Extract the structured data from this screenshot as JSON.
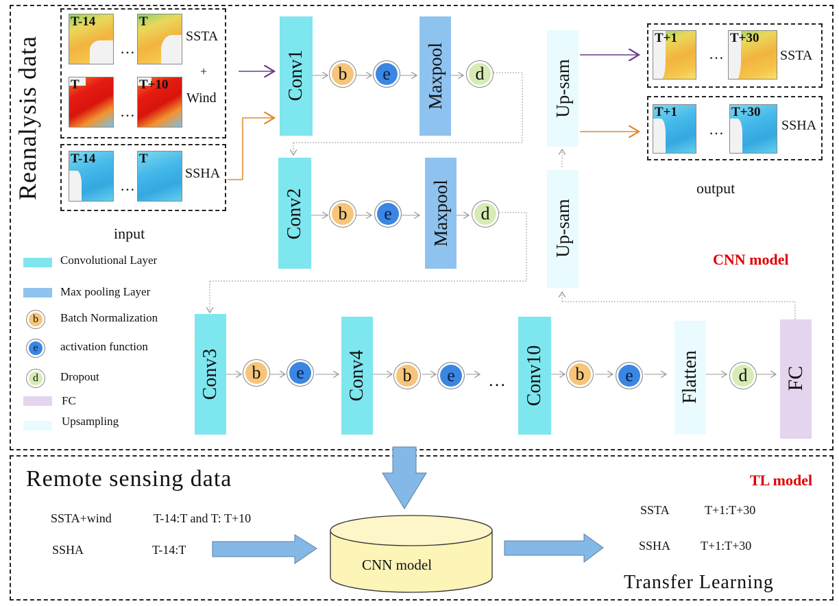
{
  "colors": {
    "conv": "#7ee6ef",
    "pool": "#8ec3ef",
    "upsample": "#e9fbfe",
    "fc": "#e4d4ee",
    "batch_norm": "#f6c57a",
    "activation": "#3a86e2",
    "dropout": "#d6ecb4",
    "model_label": "#e00000",
    "arrow_purple": "#6a3c8c",
    "arrow_orange": "#e08a2a",
    "big_arrow": "#84b8e6"
  },
  "left_title": "Reanalysis data",
  "input": {
    "caption": "input",
    "sst_row1": {
      "first": "T-14",
      "last": "T",
      "var": "SSTA"
    },
    "plus": "+",
    "sst_row2": {
      "first": "T",
      "last": "T+10",
      "var": "Wind"
    },
    "ssh_row": {
      "first": "T-14",
      "last": "T",
      "var": "SSHA"
    },
    "ellipsis": "…"
  },
  "output": {
    "caption": "output",
    "sst_row": {
      "first": "T+1",
      "last": "T+30",
      "var": "SSTA"
    },
    "ssh_row": {
      "first": "T+1",
      "last": "T+30",
      "var": "SSHA"
    },
    "ellipsis": "…"
  },
  "layers": {
    "conv1": "Conv1",
    "conv2": "Conv2",
    "conv3": "Conv3",
    "conv4": "Conv4",
    "conv10": "Conv10",
    "maxpool": "Maxpool",
    "upsam": "Up-sam",
    "flatten": "Flatten",
    "fc": "FC"
  },
  "nodes": {
    "b": "b",
    "e": "e",
    "d": "d"
  },
  "row3_ellipsis": "…",
  "legend": [
    {
      "label": "Convolutional Layer",
      "kind": "swatch-conv"
    },
    {
      "label": "Max pooling Layer",
      "kind": "swatch-pool"
    },
    {
      "label": "Batch Normalization",
      "kind": "node-b",
      "glyph": "b"
    },
    {
      "label": "activation function",
      "kind": "node-e",
      "glyph": "e"
    },
    {
      "label": "Dropout",
      "kind": "node-d",
      "glyph": "d"
    },
    {
      "label": "FC",
      "kind": "swatch-fc"
    },
    {
      "label": "Upsampling",
      "kind": "swatch-ups"
    }
  ],
  "cnn_model_label": "CNN model",
  "tl_model_label": "TL model",
  "remote": {
    "title": "Remote sensing data",
    "row1": {
      "var": "SSTA+wind",
      "range": "T-14:T and T: T+10"
    },
    "row2": {
      "var": "SSHA",
      "range": "T-14:T"
    },
    "cylinder": "CNN model",
    "out1": {
      "var": "SSTA",
      "range": "T+1:T+30"
    },
    "out2": {
      "var": "SSHA",
      "range": "T+1:T+30"
    },
    "caption": "Transfer Learning"
  }
}
